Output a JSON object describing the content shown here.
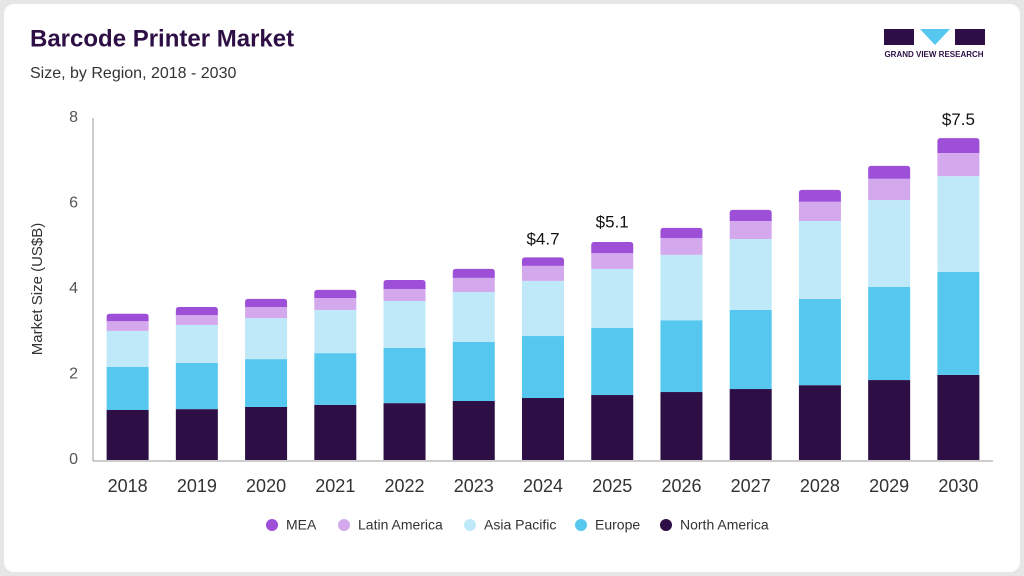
{
  "chart_data": {
    "type": "stacked_bar",
    "title": "Barcode Printer Market",
    "subtitle": "Size, by Region, 2018 - 2030",
    "logo_text": "GRAND VIEW RESEARCH",
    "y_label": "Market Size (US$B)",
    "categories": [
      "2018",
      "2019",
      "2020",
      "2021",
      "2022",
      "2023",
      "2024",
      "2025",
      "2026",
      "2027",
      "2028",
      "2029",
      "2030"
    ],
    "series": [
      {
        "name": "North America",
        "color": "#2e0f45",
        "values": [
          1.17,
          1.19,
          1.24,
          1.29,
          1.33,
          1.38,
          1.45,
          1.52,
          1.59,
          1.66,
          1.75,
          1.87,
          1.99
        ]
      },
      {
        "name": "Europe",
        "color": "#56c8f0",
        "values": [
          1.01,
          1.08,
          1.12,
          1.21,
          1.29,
          1.38,
          1.45,
          1.57,
          1.68,
          1.85,
          2.02,
          2.18,
          2.41
        ]
      },
      {
        "name": "Asia Pacific",
        "color": "#bfe9f9",
        "values": [
          0.84,
          0.89,
          0.96,
          1.01,
          1.1,
          1.17,
          1.29,
          1.38,
          1.53,
          1.66,
          1.82,
          2.03,
          2.24
        ]
      },
      {
        "name": "Latin America",
        "color": "#d4a8ec",
        "values": [
          0.23,
          0.23,
          0.26,
          0.28,
          0.28,
          0.33,
          0.35,
          0.37,
          0.39,
          0.42,
          0.45,
          0.5,
          0.54
        ]
      },
      {
        "name": "MEA",
        "color": "#9d4fd8",
        "values": [
          0.17,
          0.19,
          0.19,
          0.19,
          0.21,
          0.21,
          0.2,
          0.26,
          0.24,
          0.26,
          0.28,
          0.3,
          0.35
        ]
      }
    ],
    "totals": {
      "values": [
        null,
        null,
        null,
        null,
        null,
        null,
        4.7,
        5.1,
        null,
        null,
        null,
        null,
        7.5
      ],
      "value_labels": [
        null,
        null,
        null,
        null,
        null,
        null,
        "$4.7",
        "$5.1",
        null,
        null,
        null,
        null,
        "$7.5"
      ]
    },
    "ylim": [
      0,
      8
    ],
    "yticks": [
      0,
      2,
      4,
      6,
      8
    ],
    "grid": false
  }
}
